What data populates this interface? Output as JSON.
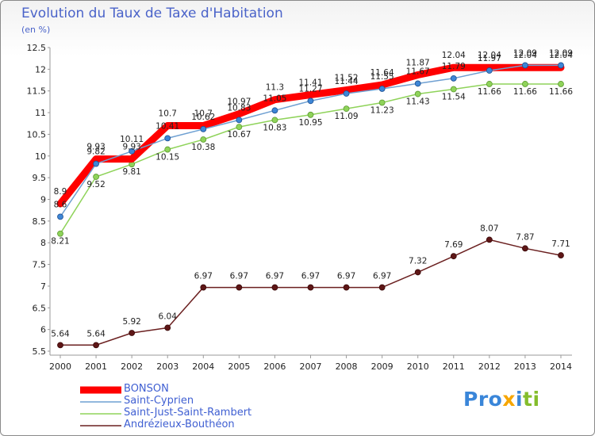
{
  "title": "Evolution du Taux de Taxe d'Habitation",
  "unit_label": "(en %)",
  "logo": {
    "text": "Proxiti"
  },
  "chart_data": {
    "type": "line",
    "title": "Evolution du Taux de Taxe d'Habitation",
    "ylabel": "(en %)",
    "xlabel": "",
    "x": [
      "2000",
      "2001",
      "2002",
      "2003",
      "2004",
      "2005",
      "2006",
      "2007",
      "2008",
      "2009",
      "2010",
      "2011",
      "2012",
      "2013",
      "2014"
    ],
    "ylim": [
      5.5,
      12.5
    ],
    "yticks": [
      "5.5",
      "6",
      "6.5",
      "7",
      "7.5",
      "8",
      "8.5",
      "9",
      "9.5",
      "10",
      "10.5",
      "11",
      "11.5",
      "12",
      "12.5"
    ],
    "grid": false,
    "legend_position": "bottom-left",
    "series": [
      {
        "name": "BONSON",
        "color": "#ff0000",
        "values": [
          8.9,
          9.93,
          9.93,
          10.7,
          10.7,
          10.97,
          11.3,
          11.41,
          11.52,
          11.64,
          11.87,
          12.04,
          12.04,
          12.04,
          12.04
        ],
        "labels": [
          "8.9",
          "9.93",
          "9.93",
          "10.7",
          "10.7",
          "10.97",
          "11.3",
          "11.41",
          "11.52",
          "11.64",
          "11.87",
          "12.04",
          "12.04",
          "12.04",
          "12.04"
        ]
      },
      {
        "name": "Saint-Cyprien",
        "color": "#6fa0d2",
        "values": [
          8.6,
          9.82,
          10.11,
          10.41,
          10.62,
          10.83,
          11.05,
          11.27,
          11.44,
          11.55,
          11.67,
          11.79,
          11.97,
          12.09,
          12.09
        ],
        "labels": [
          "8.6",
          "9.82",
          "10.11",
          "10.41",
          "10.62",
          "10.83",
          "11.05",
          "11.27",
          "11.44",
          "11.55",
          "11.67",
          "11.79",
          "11.97",
          "12.09",
          "12.09"
        ]
      },
      {
        "name": "Saint-Just-Saint-Rambert",
        "color": "#8fd35a",
        "values": [
          8.21,
          9.52,
          9.81,
          10.15,
          10.38,
          10.67,
          10.83,
          10.95,
          11.09,
          11.23,
          11.43,
          11.54,
          11.66,
          11.66,
          11.66
        ],
        "labels": [
          "8.21",
          "9.52",
          "9.81",
          "10.15",
          "10.38",
          "10.67",
          "10.83",
          "10.95",
          "11.09",
          "11.23",
          "11.43",
          "11.54",
          "11.66",
          "11.66",
          "11.66"
        ]
      },
      {
        "name": "Andrézieux-Bouthéon",
        "color": "#6b2020",
        "values": [
          5.64,
          5.64,
          5.92,
          6.04,
          6.97,
          6.97,
          6.97,
          6.97,
          6.97,
          6.97,
          7.32,
          7.69,
          8.07,
          7.87,
          7.71
        ],
        "labels": [
          "5.64",
          "5.64",
          "5.92",
          "6.04",
          "6.97",
          "6.97",
          "6.97",
          "6.97",
          "6.97",
          "6.97",
          "7.32",
          "7.69",
          "8.07",
          "7.87",
          "7.71"
        ]
      }
    ]
  }
}
